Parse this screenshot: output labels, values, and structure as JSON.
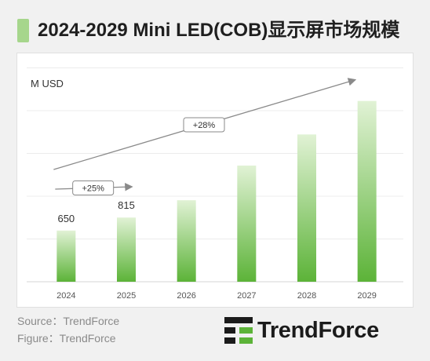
{
  "header": {
    "title": "2024-2029 Mini LED(COB)显示屏市场规模"
  },
  "chart_data": {
    "type": "bar",
    "title": "2024-2029 Mini LED(COB)显示屏市场规模",
    "ylabel": "M USD",
    "xlabel": "",
    "categories": [
      "2024",
      "2025",
      "2026",
      "2027",
      "2028",
      "2029"
    ],
    "values": [
      650,
      815,
      1035,
      1475,
      1870,
      2295
    ],
    "data_labels": [
      "650",
      "815",
      "",
      "",
      "",
      ""
    ],
    "ylim": [
      0,
      2700
    ],
    "grid": true,
    "annotations": [
      {
        "text": "+25%",
        "from": "2024",
        "to": "2025"
      },
      {
        "text": "+28%",
        "from": "2024",
        "to": "2029"
      }
    ]
  },
  "footer": {
    "source": "Source：TrendForce",
    "figure": "Figure：TrendForce"
  },
  "brand": {
    "name": "TrendForce"
  },
  "colors": {
    "bar_top": "#e1f2d5",
    "bar_bottom": "#5cb338",
    "accent": "#a6d68c"
  }
}
